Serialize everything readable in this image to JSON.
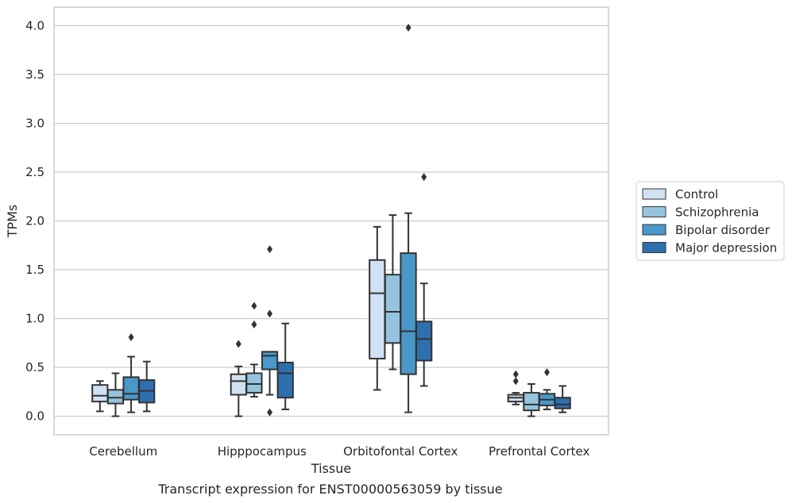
{
  "chart_data": {
    "type": "box",
    "title": "",
    "caption": "Transcript expression for ENST00000563059 by tissue",
    "xlabel": "Tissue",
    "ylabel": "TPMs",
    "ylim": [
      -0.19,
      4.19
    ],
    "yticks": [
      "0.0",
      "0.5",
      "1.0",
      "1.5",
      "2.0",
      "2.5",
      "3.0",
      "3.5",
      "4.0"
    ],
    "ytick_values": [
      0.0,
      0.5,
      1.0,
      1.5,
      2.0,
      2.5,
      3.0,
      3.5,
      4.0
    ],
    "grid": "horizontal",
    "legend_position": "right",
    "categories": [
      "Cerebellum",
      "Hipppocampus",
      "Orbitofontal Cortex",
      "Prefrontal Cortex"
    ],
    "series": [
      {
        "name": "Control",
        "color": "#d0e1f2",
        "boxes": [
          {
            "whislo": 0.05,
            "q1": 0.15,
            "med": 0.21,
            "q3": 0.32,
            "whishi": 0.36,
            "fliers": []
          },
          {
            "whislo": 0.0,
            "q1": 0.22,
            "med": 0.36,
            "q3": 0.43,
            "whishi": 0.51,
            "fliers": [
              0.74
            ]
          },
          {
            "whislo": 0.27,
            "q1": 0.59,
            "med": 1.26,
            "q3": 1.6,
            "whishi": 1.94,
            "fliers": []
          },
          {
            "whislo": 0.12,
            "q1": 0.15,
            "med": 0.19,
            "q3": 0.22,
            "whishi": 0.24,
            "fliers": [
              0.36,
              0.43
            ]
          }
        ]
      },
      {
        "name": "Schizophrenia",
        "color": "#94c4df",
        "boxes": [
          {
            "whislo": 0.0,
            "q1": 0.13,
            "med": 0.19,
            "q3": 0.27,
            "whishi": 0.44,
            "fliers": []
          },
          {
            "whislo": 0.2,
            "q1": 0.24,
            "med": 0.33,
            "q3": 0.44,
            "whishi": 0.53,
            "fliers": [
              0.94,
              1.13
            ]
          },
          {
            "whislo": 0.48,
            "q1": 0.75,
            "med": 1.07,
            "q3": 1.45,
            "whishi": 2.06,
            "fliers": []
          },
          {
            "whislo": 0.0,
            "q1": 0.06,
            "med": 0.12,
            "q3": 0.24,
            "whishi": 0.33,
            "fliers": []
          }
        ]
      },
      {
        "name": "Bipolar disorder",
        "color": "#4a98c9",
        "boxes": [
          {
            "whislo": 0.04,
            "q1": 0.17,
            "med": 0.23,
            "q3": 0.4,
            "whishi": 0.61,
            "fliers": [
              0.81
            ]
          },
          {
            "whislo": 0.22,
            "q1": 0.48,
            "med": 0.62,
            "q3": 0.66,
            "whishi": 0.66,
            "fliers": [
              0.04,
              1.05,
              1.71
            ]
          },
          {
            "whislo": 0.04,
            "q1": 0.43,
            "med": 0.87,
            "q3": 1.67,
            "whishi": 2.08,
            "fliers": [
              3.98
            ]
          },
          {
            "whislo": 0.07,
            "q1": 0.11,
            "med": 0.17,
            "q3": 0.23,
            "whishi": 0.27,
            "fliers": [
              0.45
            ]
          }
        ]
      },
      {
        "name": "Major depression",
        "color": "#2e6fb0",
        "boxes": [
          {
            "whislo": 0.05,
            "q1": 0.14,
            "med": 0.26,
            "q3": 0.37,
            "whishi": 0.56,
            "fliers": []
          },
          {
            "whislo": 0.07,
            "q1": 0.19,
            "med": 0.44,
            "q3": 0.55,
            "whishi": 0.95,
            "fliers": []
          },
          {
            "whislo": 0.31,
            "q1": 0.57,
            "med": 0.79,
            "q3": 0.97,
            "whishi": 1.36,
            "fliers": [
              2.45
            ]
          },
          {
            "whislo": 0.04,
            "q1": 0.08,
            "med": 0.12,
            "q3": 0.19,
            "whishi": 0.31,
            "fliers": []
          }
        ]
      }
    ]
  }
}
